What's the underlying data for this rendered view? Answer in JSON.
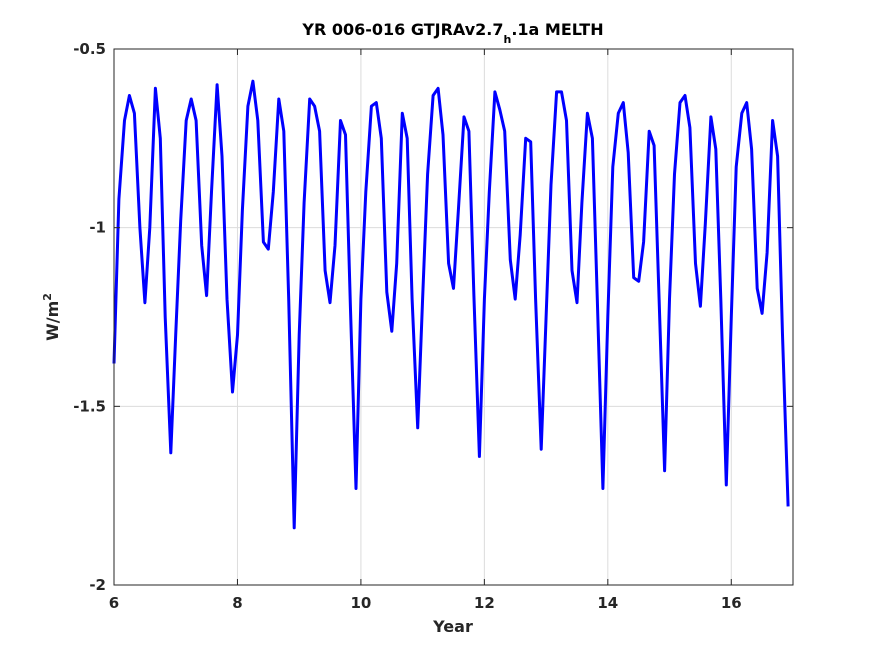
{
  "chart_data": {
    "type": "line",
    "title_main": "YR 006-016 GTJRAv2.7",
    "title_subscript": "h",
    "title_suffix": ".1a MELTH",
    "xlabel": "Year",
    "ylabel_base": "W/m",
    "ylabel_sup": "2",
    "xlim": [
      6,
      17
    ],
    "ylim": [
      -2,
      -0.5
    ],
    "x_ticks": [
      6,
      8,
      10,
      12,
      14,
      16
    ],
    "x_tick_labels": [
      "6",
      "8",
      "10",
      "12",
      "14",
      "16"
    ],
    "y_ticks": [
      -0.5,
      -1,
      -1.5,
      -2
    ],
    "y_tick_labels": [
      "-0.5",
      "-1",
      "-1.5",
      "-2"
    ],
    "grid": true,
    "line_color": "#0000ff",
    "series": [
      {
        "x": [
          6.0,
          6.08,
          6.17,
          6.25,
          6.33,
          6.42,
          6.5,
          6.58,
          6.67,
          6.75,
          6.83,
          6.92,
          7.0,
          7.08,
          7.17,
          7.25,
          7.33,
          7.42,
          7.5,
          7.58,
          7.67,
          7.75,
          7.83,
          7.92,
          8.0,
          8.08,
          8.17,
          8.25,
          8.33,
          8.42,
          8.5,
          8.58,
          8.67,
          8.75,
          8.83,
          8.92,
          9.0,
          9.08,
          9.17,
          9.25,
          9.33,
          9.42,
          9.5,
          9.58,
          9.67,
          9.75,
          9.83,
          9.92,
          10.0,
          10.08,
          10.17,
          10.25,
          10.33,
          10.42,
          10.5,
          10.58,
          10.67,
          10.75,
          10.83,
          10.92,
          11.0,
          11.08,
          11.17,
          11.25,
          11.33,
          11.42,
          11.5,
          11.58,
          11.67,
          11.75,
          11.83,
          11.92,
          12.0,
          12.08,
          12.17,
          12.25,
          12.33,
          12.42,
          12.5,
          12.58,
          12.67,
          12.75,
          12.83,
          12.92,
          13.0,
          13.08,
          13.17,
          13.25,
          13.33,
          13.42,
          13.5,
          13.58,
          13.67,
          13.75,
          13.83,
          13.92,
          14.0,
          14.08,
          14.17,
          14.25,
          14.33,
          14.42,
          14.5,
          14.58,
          14.67,
          14.75,
          14.83,
          14.92,
          15.0,
          15.08,
          15.17,
          15.25,
          15.33,
          15.42,
          15.5,
          15.58,
          15.67,
          15.75,
          15.83,
          15.92,
          16.0,
          16.08,
          16.17,
          16.25,
          16.33,
          16.42,
          16.5,
          16.58,
          16.67,
          16.75,
          16.83,
          16.92
        ],
        "y": [
          -1.38,
          -0.92,
          -0.7,
          -0.63,
          -0.68,
          -1.0,
          -1.21,
          -1.0,
          -0.61,
          -0.75,
          -1.25,
          -1.63,
          -1.3,
          -0.98,
          -0.7,
          -0.64,
          -0.7,
          -1.05,
          -1.19,
          -0.9,
          -0.6,
          -0.8,
          -1.2,
          -1.46,
          -1.3,
          -0.95,
          -0.66,
          -0.59,
          -0.7,
          -1.04,
          -1.06,
          -0.9,
          -0.64,
          -0.73,
          -1.2,
          -1.84,
          -1.3,
          -0.93,
          -0.64,
          -0.66,
          -0.73,
          -1.12,
          -1.21,
          -1.05,
          -0.7,
          -0.74,
          -1.22,
          -1.73,
          -1.2,
          -0.9,
          -0.66,
          -0.65,
          -0.75,
          -1.18,
          -1.29,
          -1.1,
          -0.68,
          -0.75,
          -1.2,
          -1.56,
          -1.2,
          -0.85,
          -0.63,
          -0.61,
          -0.74,
          -1.1,
          -1.17,
          -0.95,
          -0.69,
          -0.73,
          -1.19,
          -1.64,
          -1.2,
          -0.9,
          -0.62,
          -0.67,
          -0.73,
          -1.09,
          -1.2,
          -1.02,
          -0.75,
          -0.76,
          -1.2,
          -1.62,
          -1.25,
          -0.88,
          -0.62,
          -0.62,
          -0.7,
          -1.12,
          -1.21,
          -0.93,
          -0.68,
          -0.75,
          -1.2,
          -1.73,
          -1.25,
          -0.83,
          -0.68,
          -0.65,
          -0.79,
          -1.14,
          -1.15,
          -1.04,
          -0.73,
          -0.77,
          -1.2,
          -1.68,
          -1.2,
          -0.85,
          -0.65,
          -0.63,
          -0.72,
          -1.1,
          -1.22,
          -0.99,
          -0.69,
          -0.78,
          -1.2,
          -1.72,
          -1.25,
          -0.83,
          -0.68,
          -0.65,
          -0.78,
          -1.17,
          -1.24,
          -1.07,
          -0.7,
          -0.8,
          -1.3,
          -1.78
        ]
      }
    ]
  }
}
